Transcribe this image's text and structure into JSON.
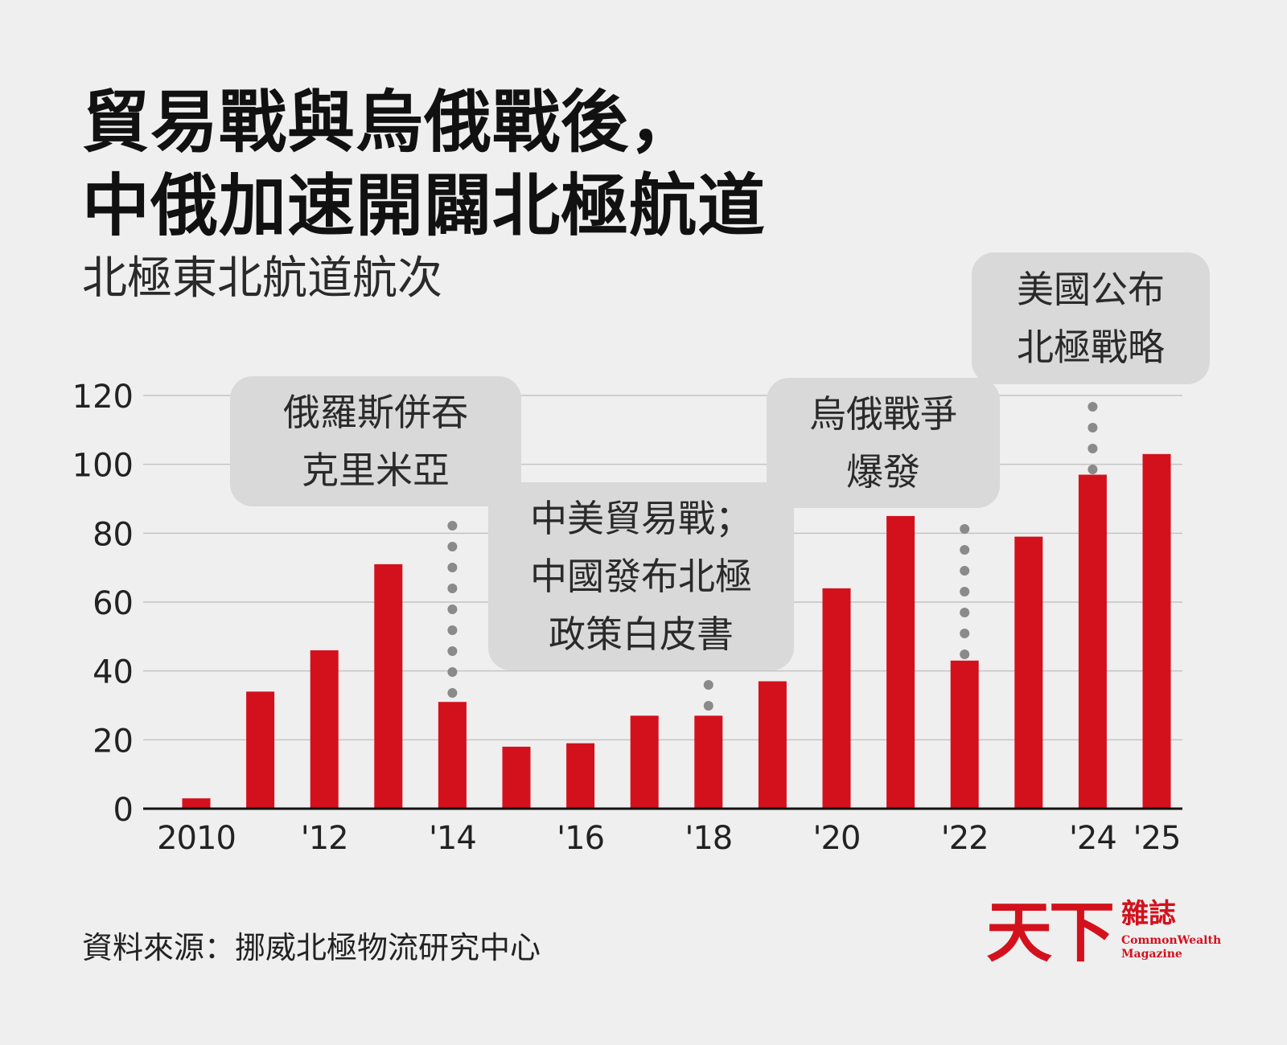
{
  "header": {
    "title_line1": "貿易戰與烏俄戰後，",
    "title_line2": "中俄加速開闢北極航道",
    "subtitle": "北極東北航道航次"
  },
  "chart_data": {
    "type": "bar",
    "title": "貿易戰與烏俄戰後，中俄加速開闢北極航道",
    "subtitle": "北極東北航道航次",
    "xlabel": "",
    "ylabel": "",
    "x": [
      2010,
      2011,
      2012,
      2013,
      2014,
      2015,
      2016,
      2017,
      2018,
      2019,
      2020,
      2021,
      2022,
      2023,
      2024,
      2025
    ],
    "values": [
      3,
      34,
      46,
      71,
      31,
      18,
      19,
      27,
      27,
      37,
      64,
      85,
      43,
      79,
      97,
      103
    ],
    "ylim": [
      0,
      120
    ],
    "yticks": [
      0,
      20,
      40,
      60,
      80,
      100,
      120
    ],
    "xtick_labels": [
      {
        "year": 2010,
        "label": "2010"
      },
      {
        "year": 2012,
        "label": "'12"
      },
      {
        "year": 2014,
        "label": "'14"
      },
      {
        "year": 2016,
        "label": "'16"
      },
      {
        "year": 2018,
        "label": "'18"
      },
      {
        "year": 2020,
        "label": "'20"
      },
      {
        "year": 2022,
        "label": "'22"
      },
      {
        "year": 2024,
        "label": "'24"
      },
      {
        "year": 2025,
        "label": "'25"
      }
    ],
    "grid": true,
    "bar_color": "#d3111d",
    "annotations": [
      {
        "year": 2014,
        "lines": [
          "俄羅斯併吞",
          "克里米亞"
        ]
      },
      {
        "year": 2018,
        "lines": [
          "中美貿易戰；",
          "中國發布北極",
          "政策白皮書"
        ]
      },
      {
        "year": 2022,
        "lines": [
          "烏俄戰爭",
          "爆發"
        ]
      },
      {
        "year": 2024,
        "lines": [
          "美國公布",
          "北極戰略"
        ]
      }
    ]
  },
  "footer": {
    "source": "資料來源：挪威北極物流研究中心"
  },
  "logo": {
    "mark": "天下",
    "magazine_cn": "雜誌",
    "magazine_en_line1": "CommonWealth",
    "magazine_en_line2": "Magazine"
  }
}
